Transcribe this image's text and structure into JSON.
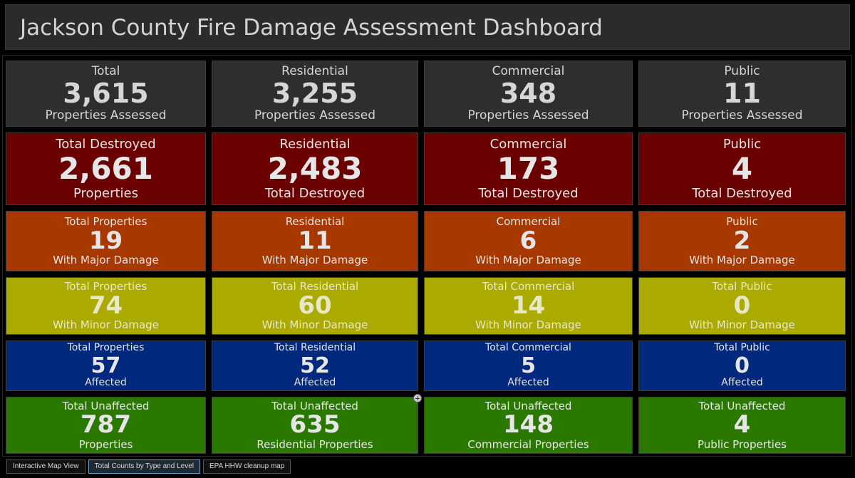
{
  "header": {
    "title": "Jackson County Fire Damage Assessment Dashboard"
  },
  "colors": {
    "total": {
      "bg": "#2e2e2e",
      "text": "#d6d6d6"
    },
    "destroyed": {
      "bg": "#6b0000",
      "text": "#e6e6e6"
    },
    "major": {
      "bg": "#a63800",
      "text": "#e6e6e6"
    },
    "minor": {
      "bg": "#aaaa00",
      "text": "#e8e8c8"
    },
    "affected": {
      "bg": "#00287d",
      "text": "#e6e6e6"
    },
    "unaffected": {
      "bg": "#2a7800",
      "text": "#e6e6e6"
    }
  },
  "rows": [
    {
      "id": "total",
      "cards": [
        {
          "top": "Total",
          "value": "3,615",
          "bottom": "Properties Assessed"
        },
        {
          "top": "Residential",
          "value": "3,255",
          "bottom": "Properties Assessed"
        },
        {
          "top": "Commercial",
          "value": "348",
          "bottom": "Properties Assessed"
        },
        {
          "top": "Public",
          "value": "11",
          "bottom": "Properties Assessed"
        }
      ]
    },
    {
      "id": "destroyed",
      "cards": [
        {
          "top": "Total Destroyed",
          "value": "2,661",
          "bottom": "Properties"
        },
        {
          "top": "Residential",
          "value": "2,483",
          "bottom": "Total Destroyed"
        },
        {
          "top": "Commercial",
          "value": "173",
          "bottom": "Total Destroyed"
        },
        {
          "top": "Public",
          "value": "4",
          "bottom": "Total Destroyed"
        }
      ]
    },
    {
      "id": "major",
      "cards": [
        {
          "top": "Total Properties",
          "value": "19",
          "bottom": "With Major Damage"
        },
        {
          "top": "Residential",
          "value": "11",
          "bottom": "With Major Damage"
        },
        {
          "top": "Commercial",
          "value": "6",
          "bottom": "With Major Damage"
        },
        {
          "top": "Public",
          "value": "2",
          "bottom": "With Major Damage"
        }
      ]
    },
    {
      "id": "minor",
      "cards": [
        {
          "top": "Total Properties",
          "value": "74",
          "bottom": "With Minor Damage"
        },
        {
          "top": "Total Residential",
          "value": "60",
          "bottom": "With Minor Damage"
        },
        {
          "top": "Total Commercial",
          "value": "14",
          "bottom": "With Minor Damage"
        },
        {
          "top": "Total Public",
          "value": "0",
          "bottom": "With Minor Damage"
        }
      ]
    },
    {
      "id": "affected",
      "cards": [
        {
          "top": "Total Properties",
          "value": "57",
          "bottom": "Affected"
        },
        {
          "top": "Total Residential",
          "value": "52",
          "bottom": "Affected"
        },
        {
          "top": "Total Commercial",
          "value": "5",
          "bottom": "Affected"
        },
        {
          "top": "Total Public",
          "value": "0",
          "bottom": "Affected"
        }
      ]
    },
    {
      "id": "unaffected",
      "cards": [
        {
          "top": "Total Unaffected",
          "value": "787",
          "bottom": "Properties"
        },
        {
          "top": "Total Unaffected",
          "value": "635",
          "bottom": "Residential Properties"
        },
        {
          "top": "Total Unaffected",
          "value": "148",
          "bottom": "Commercial Properties"
        },
        {
          "top": "Total Unaffected",
          "value": "4",
          "bottom": "Public Properties"
        }
      ]
    }
  ],
  "tabs": [
    {
      "label": "Interactive Map View",
      "active": false
    },
    {
      "label": "Total Counts by Type and Level",
      "active": true
    },
    {
      "label": "EPA HHW cleanup map",
      "active": false
    }
  ]
}
